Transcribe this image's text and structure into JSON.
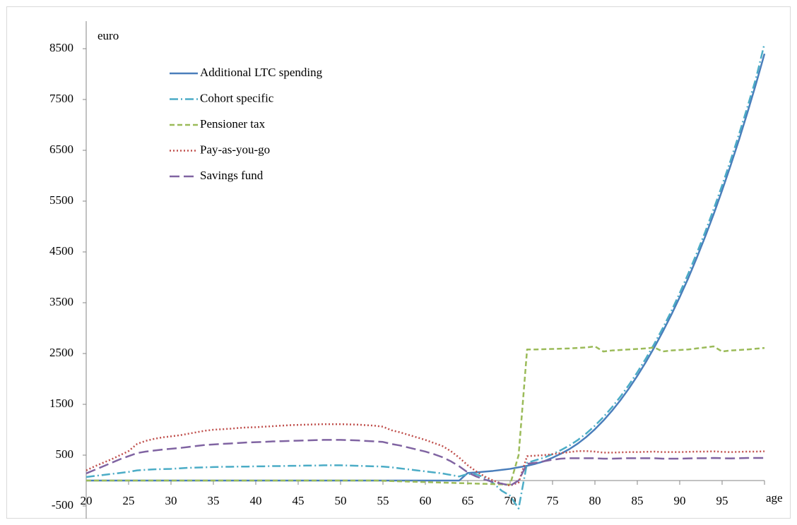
{
  "chart_data": {
    "type": "line",
    "y_label": "euro",
    "x_label": "age",
    "xlim": [
      20,
      100
    ],
    "xticks": [
      20,
      25,
      30,
      35,
      40,
      45,
      50,
      55,
      60,
      65,
      70,
      75,
      80,
      85,
      90,
      95
    ],
    "ylim": [
      -500,
      8500
    ],
    "yticks": [
      -500,
      500,
      1500,
      2500,
      3500,
      4500,
      5500,
      6500,
      7500,
      8500
    ],
    "grid": false,
    "legend": "upper left",
    "x": [
      20,
      21,
      22,
      23,
      24,
      25,
      26,
      27,
      28,
      29,
      30,
      31,
      32,
      33,
      34,
      35,
      36,
      37,
      38,
      39,
      40,
      41,
      42,
      43,
      44,
      45,
      46,
      47,
      48,
      49,
      50,
      51,
      52,
      53,
      54,
      55,
      56,
      57,
      58,
      59,
      60,
      61,
      62,
      63,
      64,
      65,
      66,
      67,
      68,
      69,
      70,
      71,
      72,
      73,
      74,
      75,
      76,
      77,
      78,
      79,
      80,
      81,
      82,
      83,
      84,
      85,
      86,
      87,
      88,
      89,
      90,
      91,
      92,
      93,
      94,
      95,
      96,
      97,
      98,
      99,
      100
    ],
    "series": [
      {
        "name": "Additional LTC spending",
        "color": "#4a7ebb",
        "style": "solid",
        "values": [
          0,
          0,
          0,
          0,
          0,
          0,
          0,
          0,
          0,
          0,
          0,
          0,
          0,
          0,
          0,
          0,
          0,
          0,
          0,
          0,
          0,
          0,
          0,
          0,
          0,
          0,
          0,
          0,
          0,
          0,
          0,
          0,
          0,
          0,
          0,
          0,
          0,
          0,
          0,
          0,
          0,
          0,
          0,
          0,
          0,
          150,
          160,
          175,
          190,
          210,
          230,
          260,
          290,
          330,
          380,
          450,
          530,
          620,
          730,
          860,
          1010,
          1180,
          1370,
          1580,
          1810,
          2060,
          2330,
          2620,
          2930,
          3260,
          3610,
          3980,
          4380,
          4800,
          5240,
          5710,
          6200,
          6710,
          7250,
          7810,
          8400
        ]
      },
      {
        "name": "Cohort specific",
        "color": "#4bacc6",
        "style": "dashdot",
        "values": [
          70,
          90,
          110,
          130,
          150,
          170,
          200,
          210,
          220,
          225,
          230,
          240,
          250,
          255,
          260,
          265,
          270,
          270,
          275,
          275,
          280,
          280,
          285,
          285,
          290,
          290,
          295,
          295,
          300,
          300,
          300,
          295,
          290,
          285,
          280,
          275,
          260,
          240,
          220,
          200,
          180,
          160,
          140,
          110,
          80,
          130,
          120,
          60,
          -50,
          -200,
          -300,
          -550,
          350,
          400,
          450,
          520,
          600,
          690,
          800,
          930,
          1080,
          1250,
          1440,
          1650,
          1880,
          2130,
          2400,
          2690,
          3000,
          3330,
          3690,
          4070,
          4470,
          4890,
          5340,
          5810,
          6300,
          6820,
          7360,
          7920,
          8600
        ]
      },
      {
        "name": "Pensioner tax",
        "color": "#9bbb59",
        "style": "dashed",
        "values": [
          0,
          0,
          0,
          0,
          0,
          0,
          0,
          0,
          0,
          0,
          0,
          0,
          0,
          0,
          0,
          0,
          0,
          0,
          0,
          0,
          0,
          0,
          0,
          0,
          0,
          0,
          0,
          0,
          0,
          0,
          0,
          0,
          0,
          0,
          0,
          -5,
          -10,
          -15,
          -20,
          -25,
          -30,
          -35,
          -40,
          -45,
          -50,
          -55,
          -60,
          -65,
          -70,
          -75,
          -80,
          500,
          2580,
          2580,
          2585,
          2590,
          2595,
          2600,
          2610,
          2620,
          2640,
          2540,
          2560,
          2570,
          2580,
          2590,
          2600,
          2620,
          2540,
          2560,
          2570,
          2580,
          2600,
          2620,
          2640,
          2540,
          2560,
          2570,
          2580,
          2595,
          2610
        ]
      },
      {
        "name": "Pay-as-you-go",
        "color": "#c0504d",
        "style": "dotted",
        "values": [
          200,
          280,
          350,
          420,
          500,
          580,
          720,
          780,
          820,
          850,
          870,
          890,
          920,
          950,
          980,
          1000,
          1010,
          1020,
          1035,
          1045,
          1050,
          1060,
          1070,
          1080,
          1090,
          1095,
          1100,
          1105,
          1110,
          1110,
          1110,
          1105,
          1100,
          1090,
          1080,
          1060,
          990,
          950,
          900,
          850,
          800,
          740,
          680,
          580,
          450,
          300,
          180,
          80,
          0,
          -60,
          -100,
          -40,
          480,
          490,
          500,
          520,
          540,
          560,
          580,
          580,
          570,
          550,
          550,
          555,
          560,
          560,
          565,
          570,
          560,
          560,
          560,
          565,
          570,
          570,
          575,
          565,
          560,
          565,
          570,
          570,
          575
        ]
      },
      {
        "name": "Savings fund",
        "color": "#8064a2",
        "style": "longdash",
        "values": [
          140,
          210,
          280,
          350,
          420,
          480,
          540,
          570,
          590,
          610,
          625,
          640,
          660,
          680,
          700,
          710,
          720,
          730,
          740,
          750,
          755,
          760,
          770,
          775,
          780,
          785,
          790,
          795,
          800,
          800,
          800,
          795,
          790,
          780,
          770,
          760,
          720,
          690,
          650,
          610,
          570,
          520,
          460,
          380,
          280,
          160,
          80,
          20,
          -30,
          -60,
          -100,
          0,
          330,
          350,
          380,
          410,
          430,
          440,
          440,
          440,
          440,
          430,
          430,
          435,
          440,
          440,
          440,
          440,
          430,
          430,
          430,
          435,
          440,
          440,
          445,
          440,
          435,
          440,
          445,
          445,
          445
        ]
      }
    ]
  }
}
